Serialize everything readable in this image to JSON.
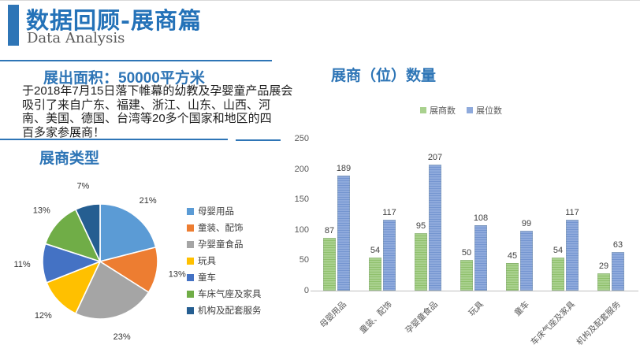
{
  "header": {
    "title": "数据回顾-展商篇",
    "subtitle": "Data Analysis"
  },
  "left": {
    "area_heading": "展出面积：50000平方米",
    "paragraph_lines": [
      "于2018年7月15日落下帷幕的幼教及孕婴童产品展会",
      "吸引了来自广东、福建、浙江、山东、山西、河",
      "南、美国、德国、台湾等20多个国家和地区的四",
      "百多家参展商！"
    ],
    "pie_title": "展商类型"
  },
  "right": {
    "bar_title": "展商（位）数量"
  },
  "colors": {
    "accent_blue": "#2E75B6",
    "text_gray": "#595959",
    "axis_gray": "#BFBFBF"
  },
  "chart_data": [
    {
      "type": "pie",
      "title": "展商类型",
      "labels": [
        "母婴用品",
        "童装、配饰",
        "孕婴童食品",
        "玩具",
        "童车",
        "车床气座及家具",
        "机构及配套服务"
      ],
      "values_percent": [
        21,
        13,
        23,
        12,
        11,
        13,
        7
      ],
      "colors": [
        "#5B9BD5",
        "#ED7D31",
        "#A5A5A5",
        "#FFC000",
        "#4472C4",
        "#70AD47",
        "#255E91"
      ],
      "start_angle_deg": 0,
      "direction": "clockwise",
      "legend_position": "right",
      "data_labels": "percent_outside"
    },
    {
      "type": "bar",
      "title": "展商（位）数量",
      "categories": [
        "母婴用品",
        "童装、配饰",
        "孕婴童食品",
        "玩具",
        "童车",
        "车床气座及家具",
        "机构及配套服务"
      ],
      "series": [
        {
          "name": "展商数",
          "fill": "#A9D18E",
          "stripe": "#8FC06C",
          "values": [
            87,
            54,
            95,
            50,
            45,
            54,
            29
          ]
        },
        {
          "name": "展位数",
          "fill": "#8FAADC",
          "stripe": "#7495D0",
          "values": [
            189,
            117,
            207,
            108,
            99,
            117,
            63
          ]
        }
      ],
      "ylim": [
        0,
        250
      ],
      "yticks": [
        0,
        50,
        100,
        150,
        200,
        250
      ],
      "grid": false,
      "legend_position": "top",
      "data_labels": true
    }
  ]
}
